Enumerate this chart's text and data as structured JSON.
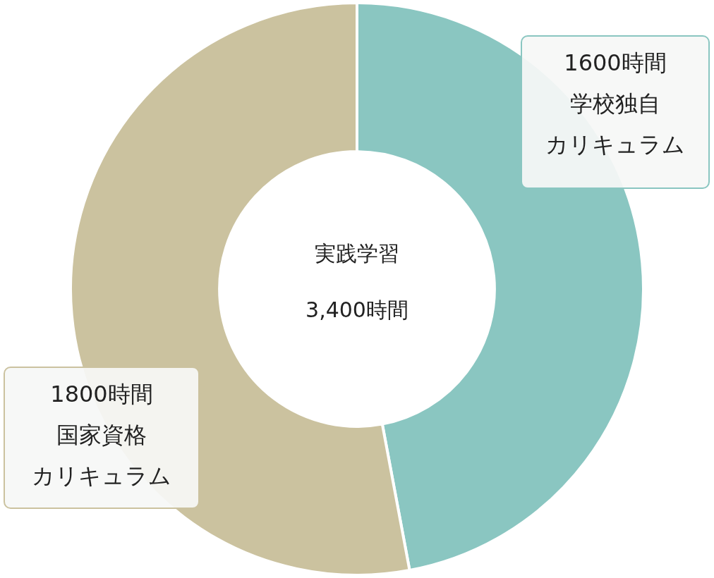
{
  "chart_data": {
    "type": "donut",
    "title": "実践学習",
    "subtitle": "3,400時間",
    "categories": [
      "学校独自カリキュラム",
      "国家資格カリキュラム"
    ],
    "values": [
      1600,
      1800
    ],
    "value_labels": [
      "1600時間",
      "1800時間"
    ],
    "colors": [
      "#8ac6c1",
      "#cbc29f"
    ],
    "legend": false
  }
}
